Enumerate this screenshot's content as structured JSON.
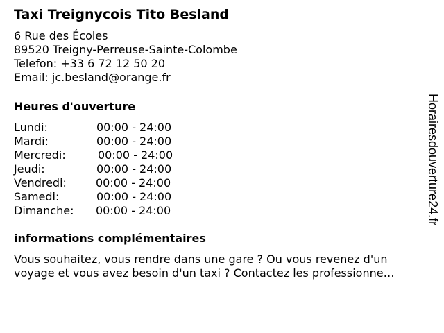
{
  "business": {
    "name": "Taxi Treignycois Tito Besland",
    "street": "6 Rue des Écoles",
    "city": "89520 Treigny-Perreuse-Sainte-Colombe",
    "phone": "Telefon: +33 6 72 12 50 20",
    "email": "Email: jc.besland@orange.fr"
  },
  "hours": {
    "heading": "Heures d'ouverture",
    "rows": [
      {
        "day": "Lundi:",
        "time": "00:00 - 24:00"
      },
      {
        "day": "Mardi:",
        "time": "00:00 - 24:00"
      },
      {
        "day": "Mercredi:",
        "time": "00:00 - 24:00"
      },
      {
        "day": "Jeudi:",
        "time": "00:00 - 24:00"
      },
      {
        "day": "Vendredi:",
        "time": "00:00 - 24:00"
      },
      {
        "day": "Samedi:",
        "time": "00:00 - 24:00"
      },
      {
        "day": "Dimanche:",
        "time": "00:00 - 24:00"
      }
    ]
  },
  "info": {
    "heading": "informations complémentaires",
    "line1": "Vous souhaitez, vous rendre dans une gare ? Ou vous revenez d'un",
    "line2": "voyage et vous avez besoin d'un taxi ? Contactez les professionne…"
  },
  "watermark": "Horairesdouverture24.fr"
}
